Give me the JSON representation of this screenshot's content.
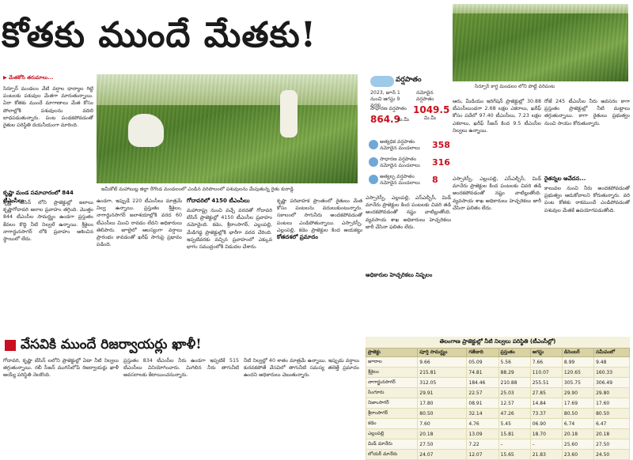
{
  "headline": "కోతకు ముందే మేతకు!",
  "top_photo_caption": "సిర్పూర్ కాగ్జ మండలం లోని పొట్టి వరిపంట",
  "intro_lead": "▶ మేతకోసి తరుమాలు...",
  "main_photo_caption": "జమీకోట్ మహాబుబ్ల జిల్లా రేగొండ మండలంలో ఎండిన వరిపొలంలో పశువులను మేపుతున్న రైతు కురాడ్డి",
  "rain_panel": {
    "title": "వర్షపాతం",
    "year_label": "2023, జూన్ 1 నుంచి ఆగస్టు 9 వరకు",
    "normal_label": "సాధారణ వర్షపాతం",
    "normal_value": "864.9",
    "normal_unit": "మి.మీ",
    "actual_label": "నమోదైన వర్షపాతం",
    "actual_value": "1049.5",
    "actual_unit": "మి.మీ",
    "stats": [
      {
        "label": "అత్యధిక వర్షపాతం నమోదైన మండలాలు",
        "value": "358"
      },
      {
        "label": "సాధారణ వర్షపాతం నమోదైన మండలాలు",
        "value": "316"
      },
      {
        "label": "అత్యల్ప వర్షపాతం నమోదైన మండలాలు",
        "value": "8"
      }
    ]
  },
  "columns": {
    "col1": "సిర్పూర్ మండలం వేటి వర్షాల ధాన్యాల గిట్టి పంటలకు పశువుల మేతగా మారుతున్నాయి. ఏరా కోతకు ముందే మాగాణాలు మేత కోసం పోలాల్లోకి పశువులను వదిలి బాధపడుతున్నారు. పంట పండకపోవడంతో రైతుల పరిస్థితి దయనీయంగా మారింది.",
    "col1_sub": "కృష్ణా మండ సమాచారంలో 844 టీఎంసీలు",
    "col1_b": "కృష్ణా బేసిన్ లోని ప్రాజెక్టుల్లో జలాలు కృష్ణాగోదావరి జలాల ప్రవాహం తగ్గింది. మొత్తం 844 టీఎంసీల సామర్థ్యం ఉండగా ప్రస్తుతం కేవలం కొద్ది నీటి నిల్వలే ఉన్నాయి. శ్రీశైలం నాగార్జునసాగర్ లోకి ప్రవాహం ఆశించిన స్థాయిలో లేదు.",
    "col2": "ఉండగా, ఇప్పుడే 220 టీఎంసీలు మాత్రమే నిల్వ ఉన్నాయి. ప్రస్తుతం శ్రీశైలం, నాగార్జునసాగర్ జలాశయాల్లోకి వరద 60 టీఎంసీలు మించి రావడం లేదని అధికారులు తెలిపారు. జూలైలో ఆలస్యంగా వర్షాలు ప్రారంభం కావడంతో ఖరీఫ్ సాగుపై ప్రభావం పడింది.",
    "col3_sub": "గోదావరిలో 4150 టీఎంసీలు",
    "col3": "మహారాష్ట్ర నుంచి వచ్చే వరదతో గోదావరి బేసిన్ ప్రాజెక్టుల్లో 4150 టీఎంసీల ప్రవాహం నమోదైంది. కడెం, శ్రీరాంసాగర్, ఎల్లంపల్లి, మేడిగడ్డ ప్రాజెక్టుల్లోకి భారీగా వరద చేరింది. ఇప్పటివరకు వచ్చిన ప్రవాహంలో ఎక్కువ భాగం సముద్రంలోకి విడుదల చేశారు.",
    "col3_b": "కోతదశలో ప్రమాదం",
    "col4": "కృష్ణా పరివాహక ప్రాంతంలో రైతులు మేత కోసం పంటలను వదులుకుంటున్నారు. సకాలంలో సాగునీరు అందకపోవడంతో పంటలు ఎండిపోతున్నాయి. ఎస్సారెస్పీ, ఎల్లంపల్లి, కడెం ప్రాజెక్టుల కింద ఆయకట్టు రైతులు ఆందోళన చెందుతున్నారు.",
    "col5": "ఆరు, మీడియం ఇరిగేషన్ ప్రాజెక్టుల్లో 30.88 టీఎంసీలుండగా 2.68 లక్షల ఎకరాలు, ఖరీఫ్ కోసం పదేలో 97.40 టీఎంసీలు, 7.23 లక్షల ఎకరాలు, ఖరీఫ్ సీజన్ కింద 9.5 టీఎంసీల నిల్వలు ఉన్నాయి.",
    "col5_sub": "అధికారుల హెచ్చరికలు నిష్ఫలం",
    "col5_b": "ఎస్సారెస్పీ, ఎల్లంపల్లి, ఎస్ఎల్బీసీ, మిడ్ మానేరు ప్రాజెక్టుల కింద పంటలకు చివరి తడి అందకపోవడంతో నష్టం వాటిల్లుతోంది. వ్యవసాయ శాఖ అధికారులు హెచ్చరికలు జారీ చేసినా ఫలితం లేదు.",
    "col6": "రోజే 245 టీఎంసీల నీరు అవసరం కాగా ప్రస్తుతం ప్రాజెక్టుల్లో నీటి మట్టాలు తగ్గుతున్నాయి. కాగా రైతులు ప్రభుత్వం నుంచి సాయం కోరుతున్నారు.",
    "col6_sub": "రైతన్నల ఆవేదన...",
    "col6_b": "కాలువల నుంచి నీరు అందకపోవడంతో ప్రభుత్వం ఆదుకోవాలని కోరుతున్నారు. వరి పంట కోతకు రాకముందే ఎండిపోవడంతో పశువుల మేతకే ఉపయోగపడుతోంది."
  },
  "section_two": {
    "heading": "వేసవికి ముందే రిజర్వాయర్లు ఖాళీ!",
    "col1": "గోదావరి, కృష్ణా బేసిన్ లలోని ప్రాజెక్టుల్లో ఏటా నీటి నిల్వలు తగ్గుతున్నాయి. రబీ సీజన్ ముగిసేలోపే రిజర్వాయర్లు ఖాళీ అయ్యే పరిస్థితి నెలకొంది.",
    "col2": "ప్రస్తుతం 834 టీఎంసీల నీరు ఉండగా ఇప్పటికే 515 టీఎంసీలు వినియోగించారు. మిగిలిన నీరు తాగునీటి అవసరాలకు కేటాయించనున్నారు.",
    "col3": "నీటి నిల్వల్లో 40 శాతం మాత్రమే ఉన్నాయి. ఇప్పుడు వర్షాలు కురవకపోతే వేసవిలో తాగునీటి సమస్య తలెత్తే ప్రమాదం ఉందని అధికారులు చెబుతున్నారు."
  },
  "table": {
    "title": "తెలంగాణ ప్రాజెక్టుల్లో నీటి నిల్వలు పరిస్థితి (టీఎంసీల్లో)",
    "headers": [
      "ప్రాజెక్టు",
      "పూర్తి సామర్థ్యం",
      "గతేడాది",
      "ప్రస్తుతం",
      "ఆగస్టు",
      "డిసెంబర్",
      "సమీపంలో"
    ],
    "rows": [
      [
        "జూరాల",
        "9.66",
        "05.09",
        "5.56",
        "7.66",
        "8.99",
        "9.48"
      ],
      [
        "శ్రీశైలం",
        "215.81",
        "74.81",
        "88.29",
        "110.07",
        "120.65",
        "160.33"
      ],
      [
        "నాగార్జునసాగర్",
        "312.05",
        "184.46",
        "210.88",
        "255.51",
        "305.75",
        "306.49"
      ],
      [
        "సింగూరు",
        "29.91",
        "22.57",
        "25.03",
        "27.85",
        "29.90",
        "29.80"
      ],
      [
        "నిజాంసాగర్",
        "17.80",
        "08.91",
        "12.57",
        "14.84",
        "17.69",
        "17.60"
      ],
      [
        "శ్రీరాంసాగర్",
        "80.50",
        "32.14",
        "47.26",
        "73.37",
        "80.50",
        "80.50"
      ],
      [
        "కడెం",
        "7.60",
        "4.76",
        "5.45",
        "06.90",
        "6.74",
        "6.47"
      ],
      [
        "ఎల్లంపల్లి",
        "20.18",
        "13.09",
        "15.81",
        "18.70",
        "20.18",
        "20.18"
      ],
      [
        "మిడ్ మానేరు",
        "27.50",
        "7.22",
        "–",
        "–",
        "25.60",
        "27.50"
      ],
      [
        "లోయర్ మానేరు",
        "24.07",
        "12.07",
        "15.65",
        "21.83",
        "23.60",
        "24.50"
      ]
    ]
  }
}
